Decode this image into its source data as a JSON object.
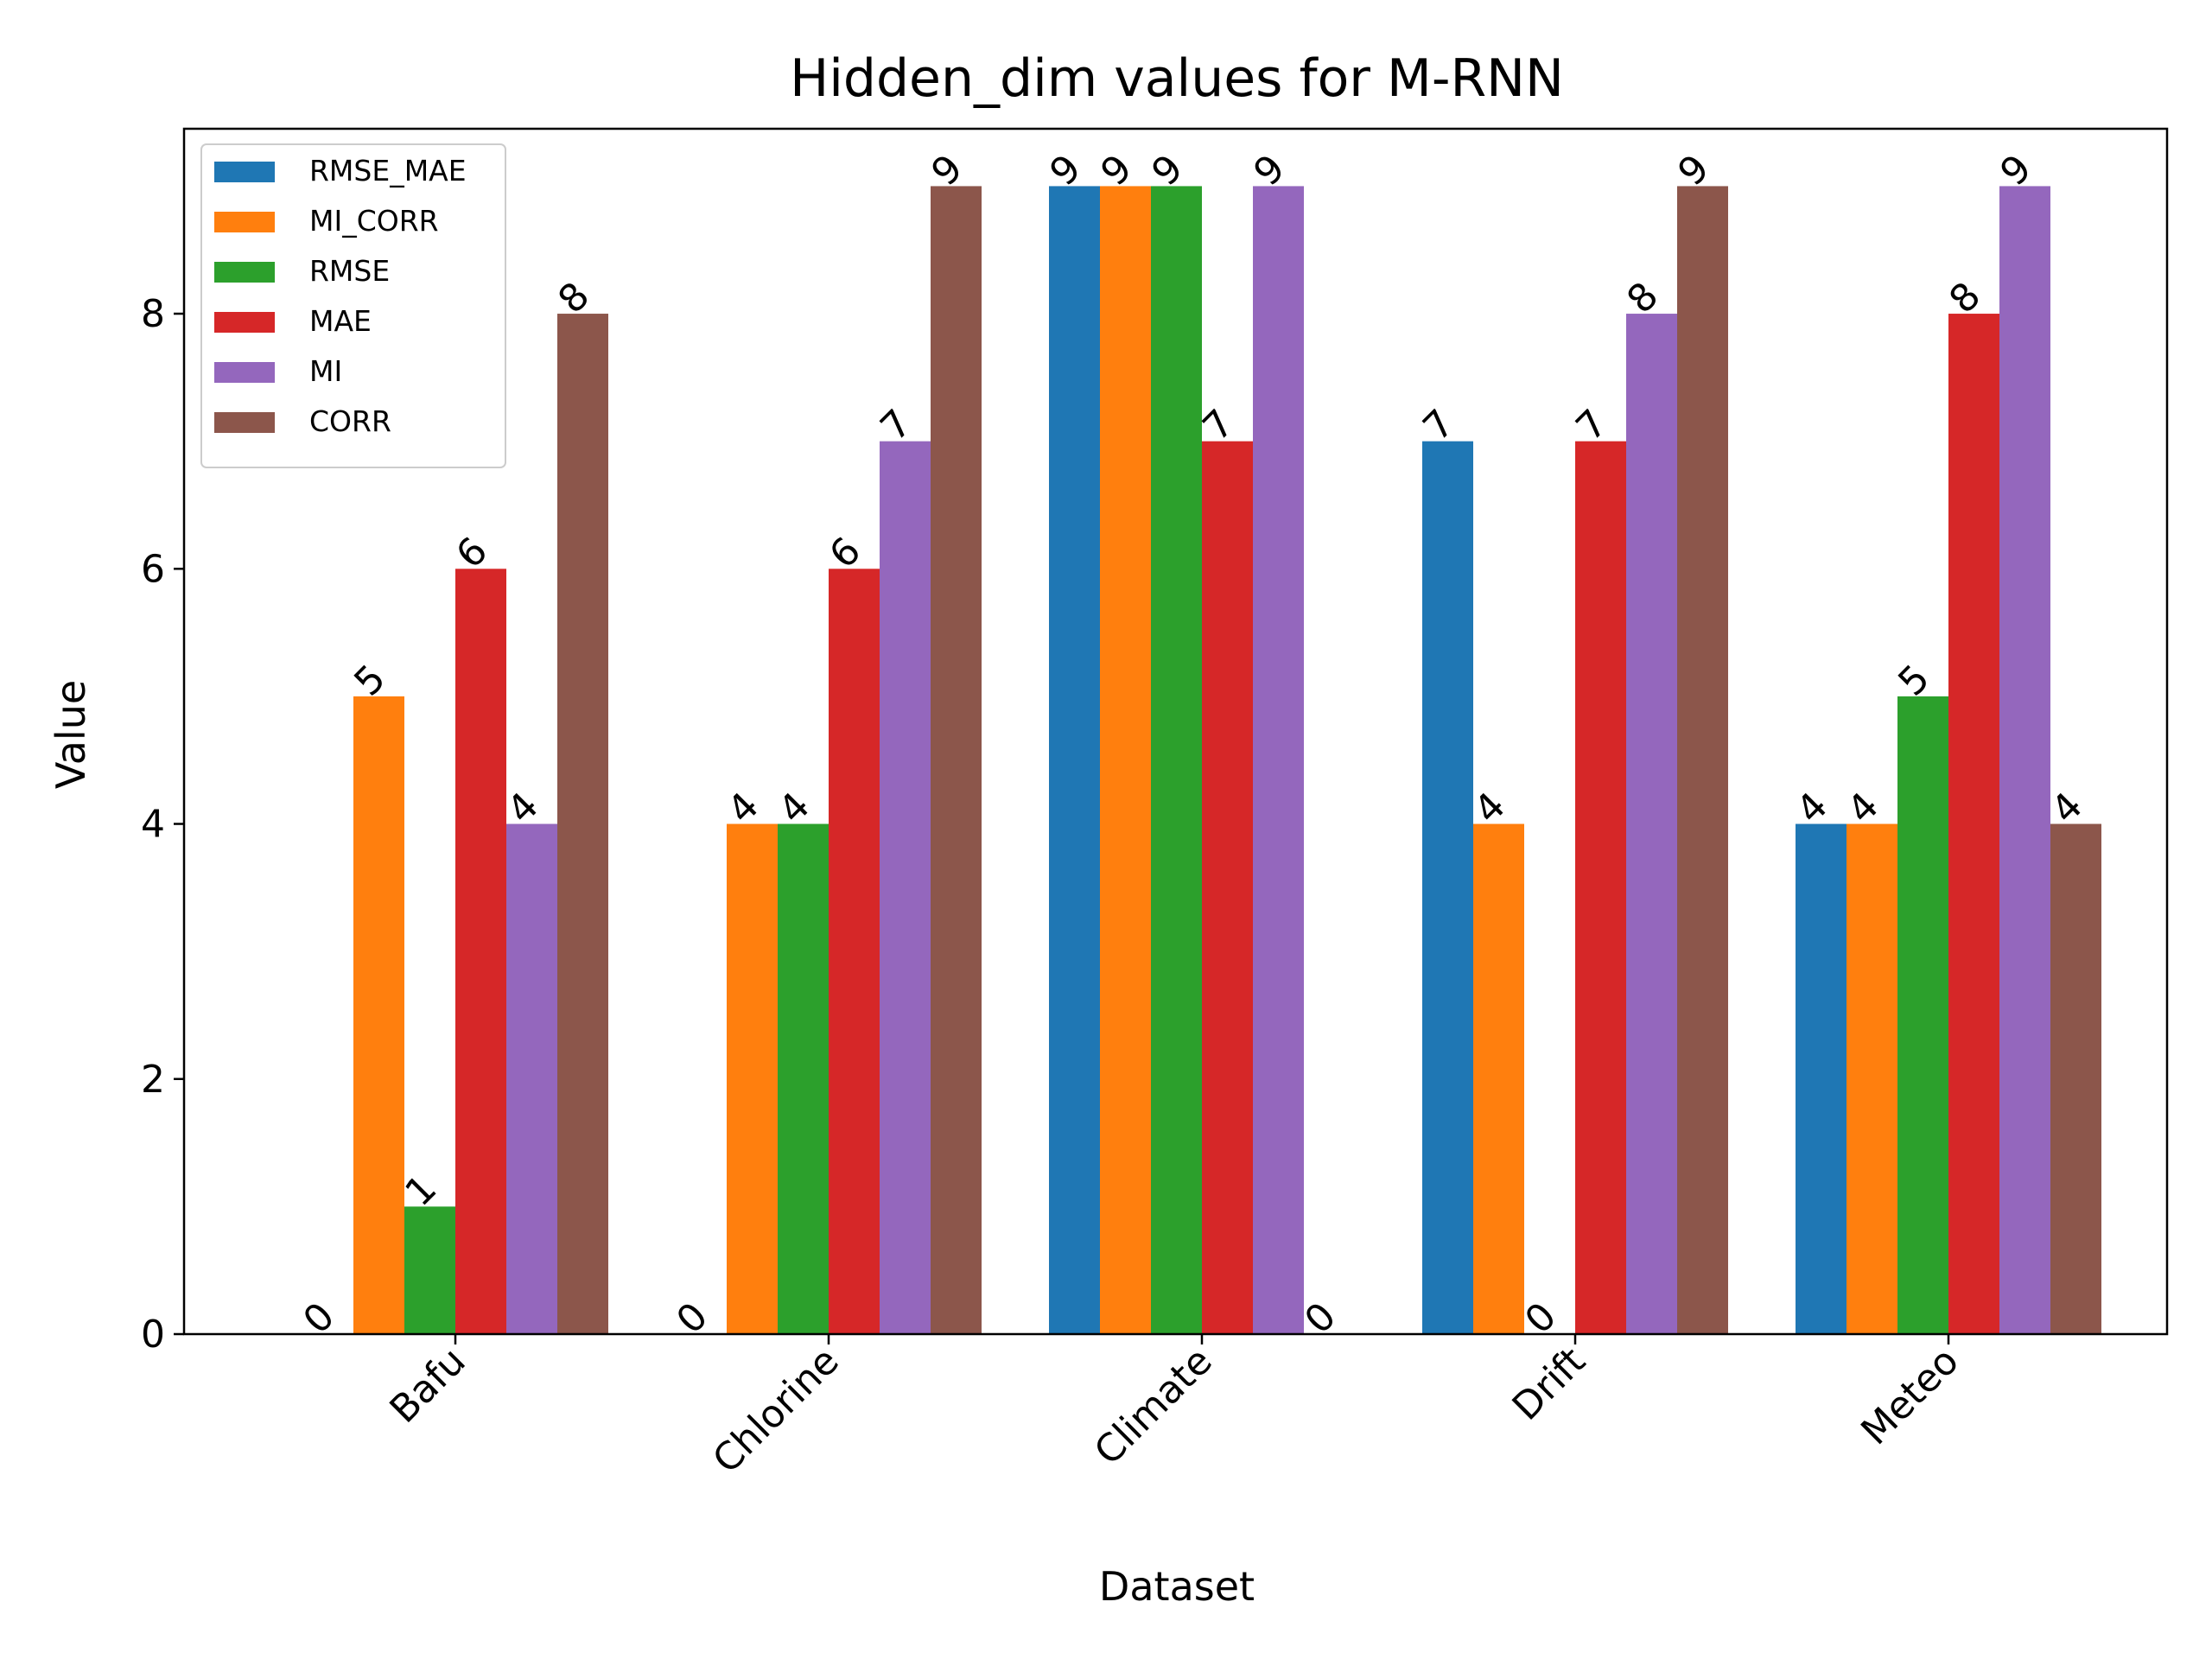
{
  "chart_data": {
    "type": "bar",
    "title": "Hidden_dim values for M-RNN",
    "xlabel": "Dataset",
    "ylabel": "Value",
    "categories": [
      "Bafu",
      "Chlorine",
      "Climate",
      "Drift",
      "Meteo"
    ],
    "ylim": [
      0,
      9.45
    ],
    "yticks": [
      0,
      2,
      4,
      6,
      8
    ],
    "grid": false,
    "legend_position": "top-left",
    "series": [
      {
        "name": "RMSE_MAE",
        "color": "#1f77b4",
        "values": [
          0,
          0,
          9,
          7,
          4
        ]
      },
      {
        "name": "MI_CORR",
        "color": "#ff7f0e",
        "values": [
          5,
          4,
          9,
          4,
          4
        ]
      },
      {
        "name": "RMSE",
        "color": "#2ca02c",
        "values": [
          1,
          4,
          9,
          0,
          5
        ]
      },
      {
        "name": "MAE",
        "color": "#d62728",
        "values": [
          6,
          6,
          7,
          7,
          8
        ]
      },
      {
        "name": "MI",
        "color": "#9467bd",
        "values": [
          4,
          7,
          9,
          8,
          9
        ]
      },
      {
        "name": "CORR",
        "color": "#8c564b",
        "values": [
          8,
          9,
          0,
          9,
          4
        ]
      }
    ]
  }
}
